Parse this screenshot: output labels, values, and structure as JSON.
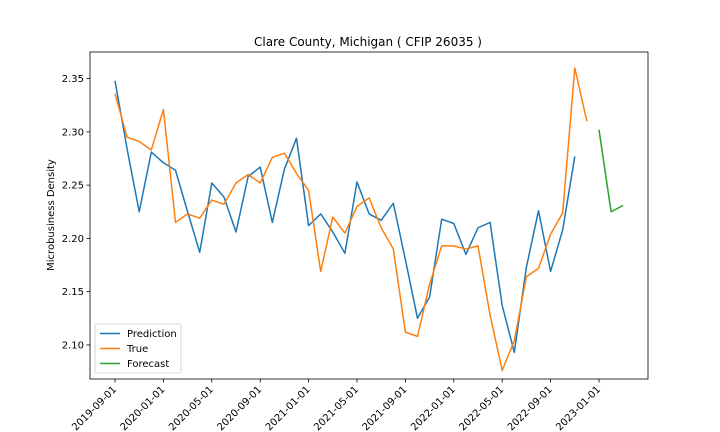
{
  "chart_data": {
    "type": "line",
    "title": "Clare County, Michigan ( CFIP 26035 )",
    "xlabel": "",
    "ylabel": "Microbusiness Density",
    "ylim": [
      2.068,
      2.375
    ],
    "y_ticks": [
      "2.10",
      "2.15",
      "2.20",
      "2.25",
      "2.30",
      "2.35"
    ],
    "x_ticks": [
      "2019-09-01",
      "2020-01-01",
      "2020-05-01",
      "2020-09-01",
      "2021-01-01",
      "2021-05-01",
      "2021-09-01",
      "2022-01-01",
      "2022-05-01",
      "2022-09-01",
      "2023-01-01"
    ],
    "legend": {
      "position": "lower-left",
      "entries": [
        "Prediction",
        "True",
        "Forecast"
      ]
    },
    "grid": false,
    "colors": {
      "Prediction": "#1f77b4",
      "True": "#ff7f0e",
      "Forecast": "#2ca02c"
    },
    "series": [
      {
        "name": "Prediction",
        "x": [
          "2019-09-01",
          "2019-10-01",
          "2019-11-01",
          "2019-12-01",
          "2020-01-01",
          "2020-02-01",
          "2020-03-01",
          "2020-04-01",
          "2020-05-01",
          "2020-06-01",
          "2020-07-01",
          "2020-08-01",
          "2020-09-01",
          "2020-10-01",
          "2020-11-01",
          "2020-12-01",
          "2021-01-01",
          "2021-02-01",
          "2021-03-01",
          "2021-04-01",
          "2021-05-01",
          "2021-06-01",
          "2021-07-01",
          "2021-08-01",
          "2021-09-01",
          "2021-10-01",
          "2021-11-01",
          "2021-12-01",
          "2022-01-01",
          "2022-02-01",
          "2022-03-01",
          "2022-04-01",
          "2022-05-01",
          "2022-06-01",
          "2022-07-01",
          "2022-08-01",
          "2022-09-01",
          "2022-10-01",
          "2022-11-01"
        ],
        "values": [
          2.348,
          2.284,
          2.225,
          2.281,
          2.271,
          2.264,
          2.225,
          2.187,
          2.252,
          2.239,
          2.206,
          2.258,
          2.267,
          2.215,
          2.265,
          2.294,
          2.212,
          2.223,
          2.206,
          2.186,
          2.253,
          2.223,
          2.217,
          2.233,
          2.18,
          2.125,
          2.145,
          2.218,
          2.214,
          2.185,
          2.21,
          2.215,
          2.137,
          2.093,
          2.173,
          2.226,
          2.169,
          2.208,
          2.277
        ]
      },
      {
        "name": "True",
        "x": [
          "2019-09-01",
          "2019-10-01",
          "2019-11-01",
          "2019-12-01",
          "2020-01-01",
          "2020-02-01",
          "2020-03-01",
          "2020-04-01",
          "2020-05-01",
          "2020-06-01",
          "2020-07-01",
          "2020-08-01",
          "2020-09-01",
          "2020-10-01",
          "2020-11-01",
          "2020-12-01",
          "2021-01-01",
          "2021-02-01",
          "2021-03-01",
          "2021-04-01",
          "2021-05-01",
          "2021-06-01",
          "2021-07-01",
          "2021-08-01",
          "2021-09-01",
          "2021-10-01",
          "2021-11-01",
          "2021-12-01",
          "2022-01-01",
          "2022-02-01",
          "2022-03-01",
          "2022-04-01",
          "2022-05-01",
          "2022-06-01",
          "2022-07-01",
          "2022-08-01",
          "2022-09-01",
          "2022-10-01",
          "2022-11-01",
          "2022-12-01"
        ],
        "values": [
          2.336,
          2.295,
          2.291,
          2.283,
          2.321,
          2.215,
          2.223,
          2.219,
          2.236,
          2.232,
          2.252,
          2.26,
          2.252,
          2.276,
          2.28,
          2.261,
          2.245,
          2.169,
          2.22,
          2.205,
          2.23,
          2.238,
          2.21,
          2.19,
          2.112,
          2.108,
          2.157,
          2.193,
          2.193,
          2.19,
          2.193,
          2.128,
          2.076,
          2.104,
          2.164,
          2.172,
          2.204,
          2.224,
          2.36,
          2.31
        ]
      },
      {
        "name": "Forecast",
        "x": [
          "2023-01-01",
          "2023-02-01",
          "2023-03-01"
        ],
        "values": [
          2.302,
          2.225,
          2.231
        ]
      }
    ]
  }
}
